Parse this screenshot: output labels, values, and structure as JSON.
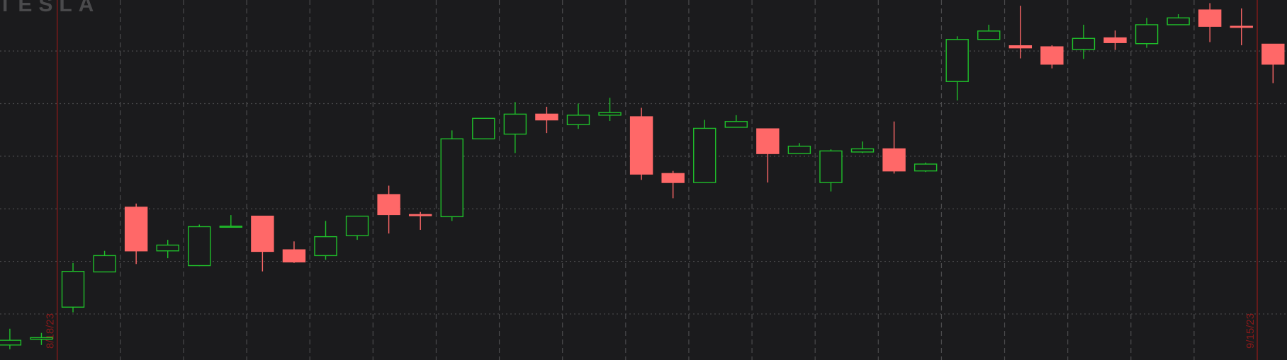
{
  "chart_data": {
    "type": "candlestick",
    "title": "TESLA",
    "categories": [
      null,
      null,
      null,
      null,
      null,
      null,
      null,
      null,
      null,
      null,
      null,
      null,
      null,
      null,
      null,
      null,
      null,
      null,
      null,
      null,
      null,
      null,
      null,
      null,
      null,
      null,
      null,
      null,
      null,
      null,
      null,
      null,
      null,
      null,
      null,
      null,
      null,
      null,
      null,
      null,
      null
    ],
    "open": [
      214.1,
      215.2,
      221.3,
      228.0,
      240.3,
      232.0,
      229.2,
      236.6,
      238.6,
      232.2,
      231.1,
      234.9,
      242.7,
      238.9,
      238.5,
      253.3,
      254.2,
      258.0,
      256.0,
      257.8,
      257.5,
      246.7,
      245.0,
      255.5,
      255.2,
      250.5,
      245.0,
      250.8,
      251.4,
      247.2,
      264.2,
      272.2,
      271.0,
      270.8,
      270.3,
      272.5,
      271.4,
      275.0,
      277.8,
      274.7,
      271.3
    ],
    "high": [
      217.2,
      216.4,
      229.7,
      232.0,
      241.0,
      234.1,
      237.0,
      238.8,
      238.6,
      233.8,
      237.7,
      238.6,
      244.4,
      239.4,
      254.9,
      257.2,
      260.3,
      259.4,
      260.0,
      261.1,
      259.2,
      247.2,
      256.9,
      257.8,
      255.2,
      252.5,
      251.3,
      252.8,
      256.6,
      248.8,
      272.8,
      275.0,
      278.6,
      271.1,
      275.0,
      273.9,
      276.3,
      277.0,
      279.1,
      278.1,
      271.3
    ],
    "low": [
      213.3,
      214.1,
      220.3,
      228.0,
      229.5,
      230.6,
      229.1,
      236.6,
      228.1,
      229.7,
      230.3,
      234.1,
      235.3,
      236.0,
      237.7,
      253.3,
      250.6,
      254.4,
      255.2,
      256.7,
      245.5,
      242.0,
      245.0,
      255.5,
      245.0,
      250.5,
      243.3,
      250.6,
      246.7,
      247.0,
      260.6,
      272.2,
      268.6,
      266.7,
      268.5,
      270.2,
      270.6,
      275.0,
      271.7,
      271.1,
      263.9
    ],
    "close": [
      215.0,
      215.5,
      228.1,
      231.1,
      232.0,
      233.1,
      236.6,
      236.7,
      231.9,
      229.9,
      234.7,
      238.6,
      238.9,
      238.8,
      253.3,
      257.2,
      258.0,
      256.9,
      257.8,
      258.3,
      246.6,
      245.0,
      255.3,
      256.6,
      250.5,
      251.9,
      251.0,
      251.4,
      247.2,
      248.5,
      272.2,
      273.8,
      270.6,
      267.5,
      272.4,
      271.6,
      275.0,
      276.3,
      274.7,
      274.5,
      267.5
    ],
    "up_color": "#1fbf2a",
    "down_color": "#ff6868",
    "ylim": [
      211.25,
      279.7
    ],
    "yticks": [
      220,
      230,
      240,
      250,
      260,
      270
    ],
    "grid": true,
    "annotations": [
      {
        "text": "8/18/23",
        "at": 1.5
      },
      {
        "text": "9/15/23",
        "at": 39.5
      }
    ]
  }
}
